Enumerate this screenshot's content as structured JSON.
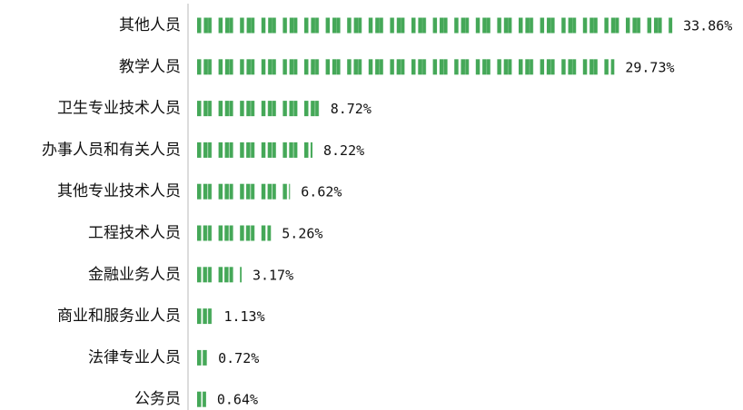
{
  "chart_data": {
    "type": "bar",
    "horizontal": true,
    "color": "#45a858",
    "categories": [
      "其他人员",
      "教学人员",
      "卫生专业技术人员",
      "办事人员和有关人员",
      "其他专业技术人员",
      "工程技术人员",
      "金融业务人员",
      "商业和服务业人员",
      "法律专业人员",
      "公务员"
    ],
    "values": [
      33.86,
      29.73,
      8.72,
      8.22,
      6.62,
      5.26,
      3.17,
      1.13,
      0.72,
      0.64
    ],
    "value_labels": [
      "33.86%",
      "29.73%",
      "8.72%",
      "8.22%",
      "6.62%",
      "5.26%",
      "3.17%",
      "1.13%",
      "0.72%",
      "0.64%"
    ]
  }
}
